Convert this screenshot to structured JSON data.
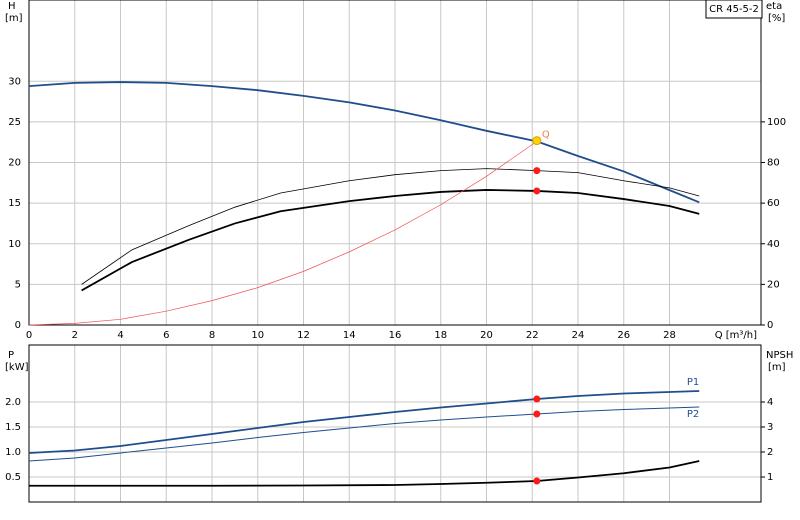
{
  "chart_data": [
    {
      "type": "line",
      "title": "CR 45-5-2",
      "y_label": "H",
      "y_unit": "[m]",
      "y2_label": "eta",
      "y2_unit": "[%]",
      "x_label": "Q [m³/h]",
      "xlim": [
        0,
        32
      ],
      "xticks": [
        0,
        2,
        4,
        6,
        8,
        10,
        12,
        14,
        16,
        18,
        20,
        22,
        24,
        26,
        28
      ],
      "ylim": [
        0,
        40
      ],
      "yticks": [
        0,
        5,
        10,
        15,
        20,
        25,
        30
      ],
      "y2lim": [
        0,
        160
      ],
      "y2ticks": [
        0,
        20,
        40,
        60,
        80,
        100
      ],
      "grid": true,
      "show_xtick_labels": true,
      "duty_point": {
        "x": 22.2,
        "y": 22.7,
        "label": "Q"
      },
      "series": [
        {
          "color": "#1f4e8c",
          "x": [
            0,
            2,
            4,
            6,
            8,
            10,
            12,
            14,
            16,
            18,
            20,
            22.2,
            24,
            26,
            28,
            29.3
          ],
          "values": [
            29.4,
            29.8,
            29.9,
            29.8,
            29.4,
            28.9,
            28.2,
            27.4,
            26.4,
            25.2,
            23.9,
            22.6,
            20.8,
            18.9,
            16.6,
            15.1
          ]
        },
        {
          "color": "#000000",
          "axis": "y2",
          "x": [
            2.3,
            4.5,
            7,
            9,
            11,
            14,
            16,
            18,
            20,
            22.2,
            24,
            26,
            28,
            29.3
          ],
          "values": [
            20,
            37,
            49,
            58,
            65,
            71,
            74,
            76,
            77,
            76,
            75,
            71,
            67.5,
            63.5
          ]
        },
        {
          "color": "#000000",
          "axis": "y2",
          "x": [
            2.3,
            4.5,
            7,
            9,
            11,
            14,
            16,
            18,
            20,
            22.2,
            24,
            26,
            28,
            29.3
          ],
          "values": [
            17,
            31,
            42,
            50,
            56,
            61,
            63.5,
            65.5,
            66.5,
            66,
            65,
            62,
            58.6,
            54.7
          ]
        },
        {
          "color": "#f05050",
          "x": [
            0,
            2,
            4,
            6,
            8,
            10,
            12,
            14,
            16,
            18,
            20,
            22.2
          ],
          "values": [
            0,
            0.2,
            0.7,
            1.7,
            3.0,
            4.6,
            6.6,
            9.0,
            11.7,
            14.8,
            18.3,
            22.6
          ]
        }
      ]
    },
    {
      "type": "line",
      "y_label": "P",
      "y_unit": "[kW]",
      "y2_label": "NPSH",
      "y2_unit": "[m]",
      "xlim": [
        0,
        32
      ],
      "xticks": [
        0,
        2,
        4,
        6,
        8,
        10,
        12,
        14,
        16,
        18,
        20,
        22,
        24,
        26,
        28
      ],
      "ylim": [
        0,
        3.14
      ],
      "yticks": [
        0.5,
        {
          "value": 1,
          "label": "1.0"
        },
        1.5,
        {
          "value": 2,
          "label": "2.0"
        }
      ],
      "y2lim": [
        0,
        6.28
      ],
      "y2ticks": [
        1,
        2,
        3,
        4
      ],
      "grid": true,
      "show_xtick_labels": false,
      "duty_point": {
        "x": 22.2
      },
      "series": [
        {
          "name": "P1",
          "color": "#1f4e8c",
          "x": [
            0,
            2,
            4,
            6,
            8,
            10,
            12,
            14,
            16,
            18,
            20,
            22.2,
            24,
            26,
            28,
            29.3
          ],
          "values": [
            0.98,
            1.03,
            1.12,
            1.24,
            1.36,
            1.48,
            1.6,
            1.7,
            1.8,
            1.89,
            1.97,
            2.06,
            2.12,
            2.17,
            2.2,
            2.22
          ]
        },
        {
          "name": "P2",
          "color": "#1f4e8c",
          "x": [
            0,
            2,
            4,
            6,
            8,
            10,
            12,
            14,
            16,
            18,
            20,
            22.2,
            24,
            26,
            28,
            29.3
          ],
          "values": [
            0.82,
            0.88,
            0.98,
            1.08,
            1.18,
            1.29,
            1.39,
            1.48,
            1.57,
            1.64,
            1.7,
            1.76,
            1.81,
            1.85,
            1.88,
            1.9
          ]
        },
        {
          "color": "#000000",
          "axis": "y2",
          "x": [
            0,
            4,
            8,
            12,
            16,
            18,
            20,
            22.2,
            24,
            26,
            28,
            29.3
          ],
          "values": [
            0.65,
            0.65,
            0.65,
            0.66,
            0.68,
            0.72,
            0.77,
            0.84,
            0.98,
            1.15,
            1.38,
            1.64
          ]
        }
      ]
    }
  ]
}
